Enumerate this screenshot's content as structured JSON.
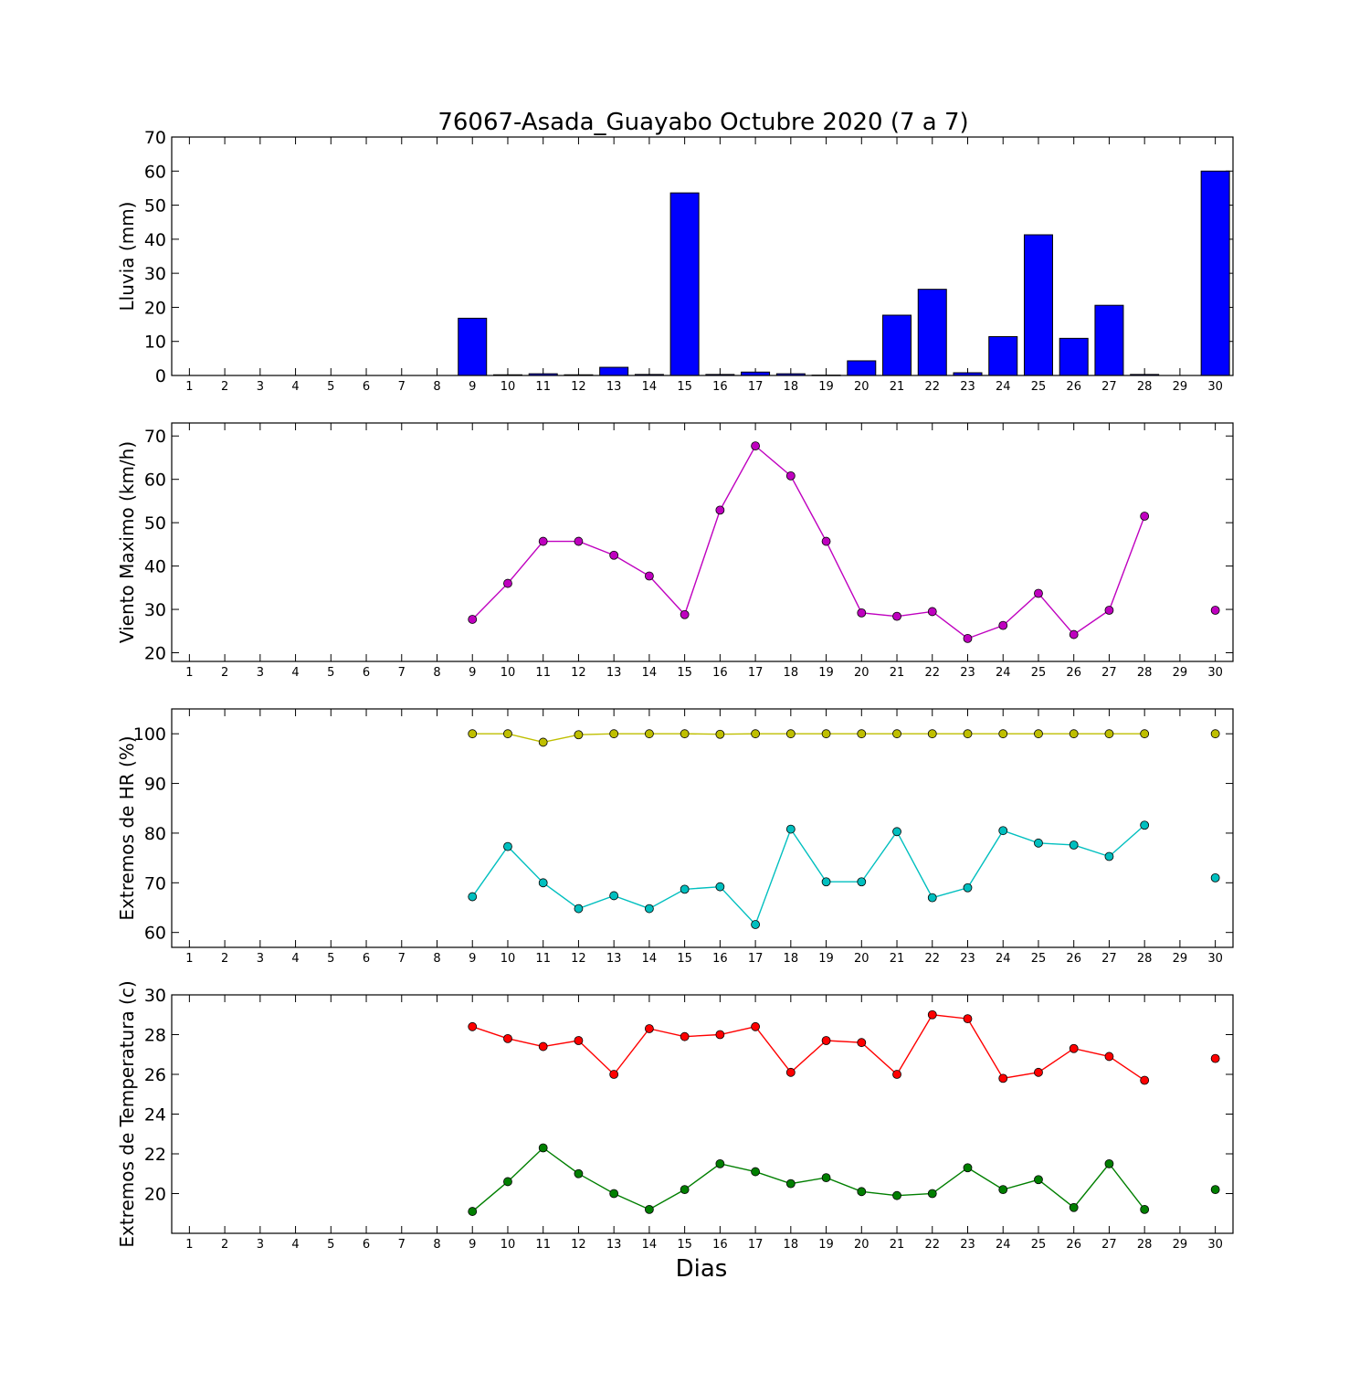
{
  "title": "76067-Asada_Guayabo Octubre 2020  (7 a 7)",
  "xlabel": "Dias",
  "colors": {
    "rain": "#0000ff",
    "wind": "#bf00bf",
    "hr_max": "#bfbf00",
    "hr_min": "#00bfbf",
    "temp_max": "#ff0000",
    "temp_min": "#007f00"
  },
  "chart_data": [
    {
      "type": "bar",
      "ylabel": "Lluvia (mm)",
      "ylim": [
        0,
        70
      ],
      "yticks": [
        0,
        10,
        20,
        30,
        40,
        50,
        60,
        70
      ],
      "x": [
        1,
        2,
        3,
        4,
        5,
        6,
        7,
        8,
        9,
        10,
        11,
        12,
        13,
        14,
        15,
        16,
        17,
        18,
        19,
        20,
        21,
        22,
        23,
        24,
        25,
        26,
        27,
        28,
        29,
        30
      ],
      "series": [
        {
          "color_key": "rain",
          "values": [
            0,
            0,
            0,
            0,
            0,
            0,
            0,
            0,
            16.8,
            0.2,
            0.5,
            0.2,
            2.4,
            0.3,
            53.6,
            0.3,
            1.0,
            0.5,
            0.1,
            4.3,
            17.7,
            25.3,
            0.8,
            11.4,
            41.3,
            10.9,
            20.6,
            0.3,
            0,
            60.0
          ]
        }
      ]
    },
    {
      "type": "line",
      "ylabel": "Viento Maximo (km/h)",
      "ylim": [
        18,
        73
      ],
      "yticks": [
        20,
        30,
        40,
        50,
        60,
        70
      ],
      "x": [
        1,
        2,
        3,
        4,
        5,
        6,
        7,
        8,
        9,
        10,
        11,
        12,
        13,
        14,
        15,
        16,
        17,
        18,
        19,
        20,
        21,
        22,
        23,
        24,
        25,
        26,
        27,
        28,
        29,
        30
      ],
      "series": [
        {
          "color_key": "wind",
          "values": [
            null,
            null,
            null,
            null,
            null,
            null,
            null,
            null,
            27.7,
            36.0,
            45.7,
            45.7,
            42.5,
            37.7,
            28.8,
            52.9,
            67.7,
            60.8,
            45.7,
            29.2,
            28.4,
            29.5,
            23.3,
            26.3,
            33.7,
            24.2,
            29.8,
            51.5,
            null,
            29.8
          ]
        }
      ]
    },
    {
      "type": "line",
      "ylabel": "Extremos de HR (%)",
      "ylim": [
        57,
        105
      ],
      "yticks": [
        60,
        70,
        80,
        90,
        100
      ],
      "x": [
        1,
        2,
        3,
        4,
        5,
        6,
        7,
        8,
        9,
        10,
        11,
        12,
        13,
        14,
        15,
        16,
        17,
        18,
        19,
        20,
        21,
        22,
        23,
        24,
        25,
        26,
        27,
        28,
        29,
        30
      ],
      "series": [
        {
          "color_key": "hr_max",
          "values": [
            null,
            null,
            null,
            null,
            null,
            null,
            null,
            null,
            100,
            100,
            98.3,
            99.8,
            100,
            100,
            100,
            99.9,
            100,
            100,
            100,
            100,
            100,
            100,
            100,
            100,
            100,
            100,
            100,
            100,
            null,
            100
          ]
        },
        {
          "color_key": "hr_min",
          "values": [
            null,
            null,
            null,
            null,
            null,
            null,
            null,
            null,
            67.2,
            77.3,
            70.0,
            64.8,
            67.4,
            64.8,
            68.7,
            69.2,
            61.6,
            80.8,
            70.2,
            70.2,
            80.3,
            67.0,
            69.0,
            80.5,
            78.0,
            77.6,
            75.3,
            81.6,
            null,
            71.0
          ]
        }
      ]
    },
    {
      "type": "line",
      "ylabel": "Extremos de Temperatura (c)",
      "ylim": [
        18,
        30
      ],
      "yticks": [
        20,
        22,
        24,
        26,
        28,
        30
      ],
      "x": [
        1,
        2,
        3,
        4,
        5,
        6,
        7,
        8,
        9,
        10,
        11,
        12,
        13,
        14,
        15,
        16,
        17,
        18,
        19,
        20,
        21,
        22,
        23,
        24,
        25,
        26,
        27,
        28,
        29,
        30
      ],
      "series": [
        {
          "color_key": "temp_max",
          "values": [
            null,
            null,
            null,
            null,
            null,
            null,
            null,
            null,
            28.4,
            27.8,
            27.4,
            27.7,
            26.0,
            28.3,
            27.9,
            28.0,
            28.4,
            26.1,
            27.7,
            27.6,
            26.0,
            29.0,
            28.8,
            25.8,
            26.1,
            27.3,
            26.9,
            25.7,
            null,
            26.8
          ]
        },
        {
          "color_key": "temp_min",
          "values": [
            null,
            null,
            null,
            null,
            null,
            null,
            null,
            null,
            19.1,
            20.6,
            22.3,
            21.0,
            20.0,
            19.2,
            20.2,
            21.5,
            21.1,
            20.5,
            20.8,
            20.1,
            19.9,
            20.0,
            21.3,
            20.2,
            20.7,
            19.3,
            21.5,
            19.2,
            null,
            20.2
          ]
        }
      ]
    }
  ]
}
